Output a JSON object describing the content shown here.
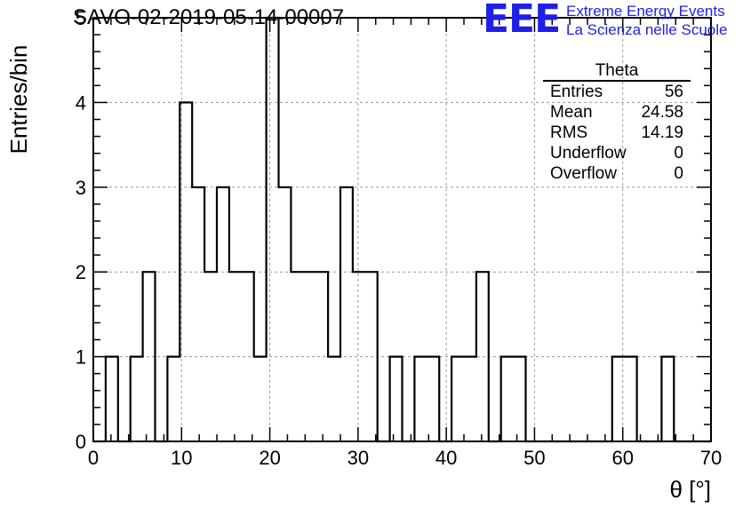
{
  "header": {
    "title": "SAVO-02-2019-05-14-00007",
    "logo_text": "EEE",
    "logo_line1": "Extreme Energy Events",
    "logo_line2": "La Scienza nelle Scuole"
  },
  "stats_box": {
    "name": "Theta",
    "rows": [
      {
        "label": "Entries",
        "value": "56"
      },
      {
        "label": "Mean",
        "value": "24.58"
      },
      {
        "label": "RMS",
        "value": "14.19"
      },
      {
        "label": "Underflow",
        "value": "0"
      },
      {
        "label": "Overflow",
        "value": "0"
      }
    ]
  },
  "colors": {
    "line": "#000000",
    "grid": "#9a9a9a",
    "logo": "#1f1fe6"
  },
  "chart_data": {
    "type": "histogram",
    "xlabel": "θ [°]",
    "ylabel": "Entries/bin",
    "xlim": [
      0,
      70
    ],
    "ylim": [
      0,
      5
    ],
    "x_ticks": [
      0,
      10,
      20,
      30,
      40,
      50,
      60,
      70
    ],
    "y_ticks": [
      0,
      1,
      2,
      3,
      4,
      5
    ],
    "grid": true,
    "bin_width": 1.4,
    "bin_start": 0,
    "counts": [
      0,
      1,
      0,
      1,
      2,
      0,
      1,
      4,
      3,
      2,
      3,
      2,
      2,
      1,
      5,
      3,
      2,
      2,
      2,
      1,
      3,
      2,
      2,
      0,
      1,
      0,
      1,
      1,
      0,
      1,
      1,
      2,
      0,
      1,
      1,
      0,
      0,
      0,
      0,
      0,
      0,
      0,
      1,
      1,
      0,
      0,
      1,
      0,
      0,
      0
    ]
  }
}
